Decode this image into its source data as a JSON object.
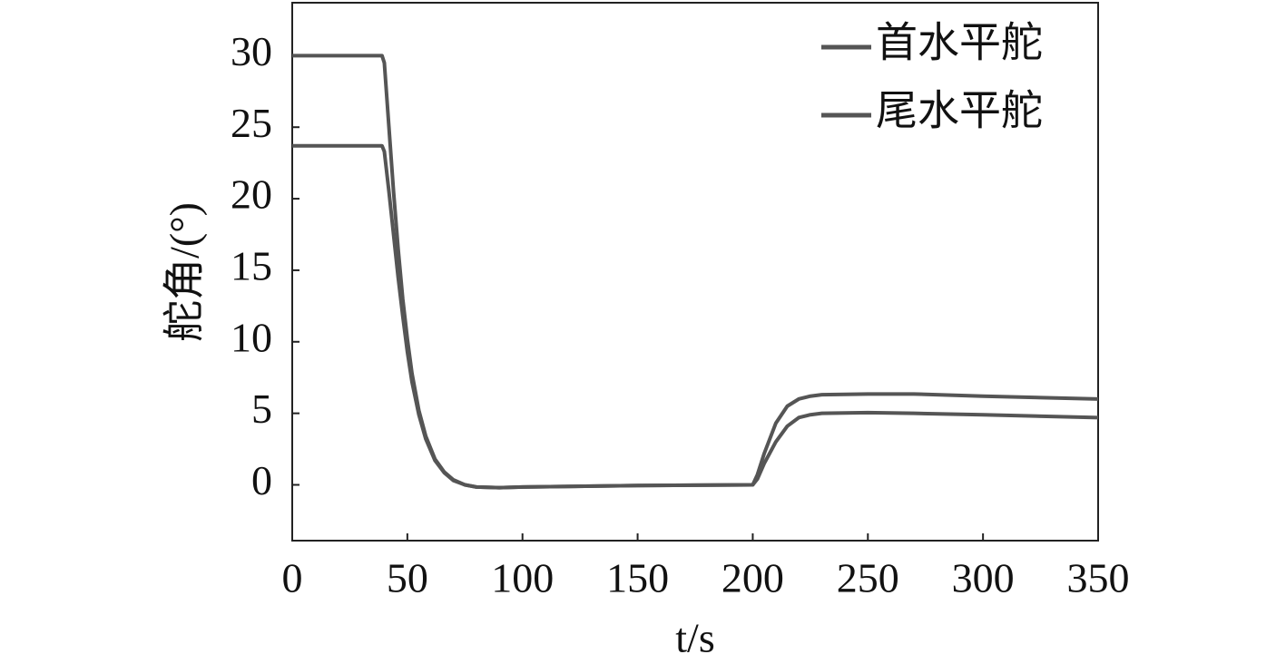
{
  "chart_data": {
    "type": "line",
    "x_label": "t/s",
    "y_label": "舵角/(°)",
    "x": [
      0,
      39,
      40,
      42,
      44,
      46,
      48,
      50,
      52,
      55,
      58,
      62,
      66,
      70,
      75,
      80,
      90,
      100,
      150,
      200,
      202,
      205,
      210,
      215,
      220,
      225,
      230,
      250,
      270,
      300,
      350
    ],
    "series": [
      {
        "name": "首水平舵",
        "color": "#555555",
        "values": [
          30,
          30,
          29.5,
          25,
          20.5,
          16.5,
          13,
          10.2,
          7.8,
          5.2,
          3.4,
          1.8,
          0.9,
          0.35,
          0,
          -0.15,
          -0.2,
          -0.15,
          -0.05,
          0,
          0.7,
          2.2,
          4.3,
          5.5,
          6.0,
          6.2,
          6.3,
          6.35,
          6.35,
          6.2,
          6.0
        ]
      },
      {
        "name": "尾水平舵",
        "color": "#555555",
        "values": [
          23.7,
          23.7,
          23.3,
          20.5,
          17.5,
          14.5,
          11.8,
          9.3,
          7.2,
          4.9,
          3.2,
          1.7,
          0.85,
          0.3,
          0,
          -0.15,
          -0.2,
          -0.15,
          -0.05,
          0,
          0.4,
          1.5,
          3.0,
          4.1,
          4.7,
          4.9,
          5.0,
          5.05,
          5.0,
          4.9,
          4.7
        ]
      }
    ],
    "xlim": [
      0,
      350
    ],
    "xticks": [
      0,
      50,
      100,
      150,
      200,
      250,
      300,
      350
    ],
    "ylim": [
      -3.9,
      33.7
    ],
    "yticks": [
      0,
      5,
      10,
      15,
      20,
      25,
      30
    ],
    "grid": false,
    "legend": "upper right"
  }
}
